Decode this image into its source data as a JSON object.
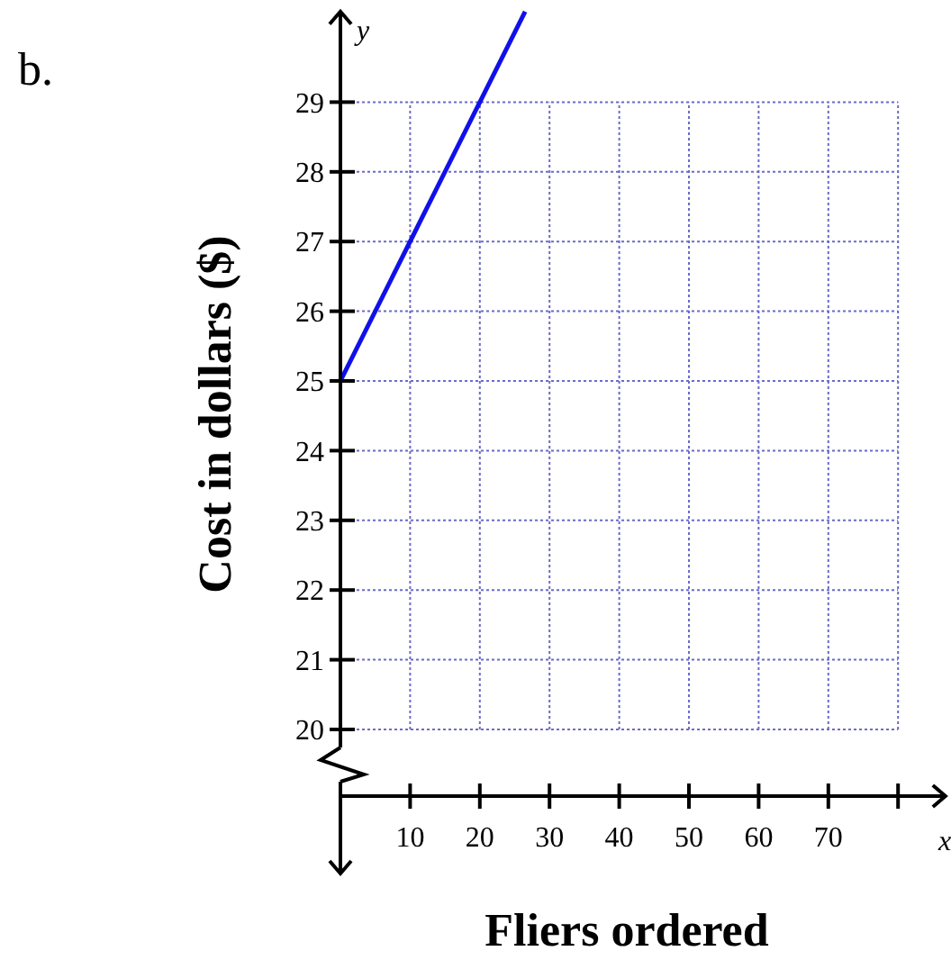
{
  "chart_data": {
    "type": "line",
    "title": "b.",
    "xlabel": "Fliers ordered",
    "ylabel": "Cost in dollars ($)",
    "annotations": [
      "x",
      "y"
    ],
    "x": [
      0,
      26.5
    ],
    "series": [
      {
        "color": "#1010e8",
        "values": [
          25,
          30.3
        ]
      }
    ],
    "xlim": [
      0,
      86.8
    ],
    "ylim": [
      20,
      30.3
    ],
    "xticks": [
      10,
      20,
      30,
      40,
      50,
      60,
      70,
      {
        "value": 80,
        "label": null
      }
    ],
    "yticks": [
      20,
      21,
      22,
      23,
      24,
      25,
      26,
      27,
      28,
      29
    ],
    "grid": true,
    "marker": "none",
    "line_style": "solid"
  }
}
